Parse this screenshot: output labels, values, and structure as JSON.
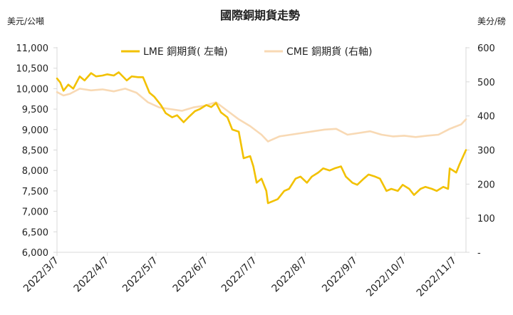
{
  "chart_data": {
    "type": "line",
    "title": "國際銅期貨走勢",
    "left_unit": "美元/公噸",
    "right_unit": "美分/磅",
    "legend_position": "top",
    "grid": false,
    "colors": {
      "lme": "#F2C100",
      "cme": "#F8D9B4"
    },
    "x_ticks": [
      "2022/3/7",
      "2022/4/7",
      "2022/5/7",
      "2022/6/7",
      "2022/7/7",
      "2022/8/7",
      "2022/9/7",
      "2022/10/7",
      "2022/11/7"
    ],
    "y_left_ticks": [
      "6,000",
      "6,500",
      "7,000",
      "7,500",
      "8,000",
      "8,500",
      "9,000",
      "9,500",
      "10,000",
      "10,500",
      "11,000"
    ],
    "y_right_ticks": [
      "-",
      "100",
      "200",
      "300",
      "400",
      "500",
      "600"
    ],
    "ylim_left": [
      6000,
      11000
    ],
    "ylim_right": [
      0,
      600
    ],
    "series": [
      {
        "name": "LME 銅期貨( 左軸)",
        "axis": "left",
        "points": [
          [
            "2022-03-07",
            10250
          ],
          [
            "2022-03-09",
            10150
          ],
          [
            "2022-03-11",
            9950
          ],
          [
            "2022-03-14",
            10100
          ],
          [
            "2022-03-17",
            10000
          ],
          [
            "2022-03-21",
            10300
          ],
          [
            "2022-03-24",
            10200
          ],
          [
            "2022-03-28",
            10380
          ],
          [
            "2022-03-31",
            10300
          ],
          [
            "2022-04-04",
            10320
          ],
          [
            "2022-04-07",
            10350
          ],
          [
            "2022-04-11",
            10320
          ],
          [
            "2022-04-14",
            10400
          ],
          [
            "2022-04-19",
            10200
          ],
          [
            "2022-04-22",
            10300
          ],
          [
            "2022-04-26",
            10280
          ],
          [
            "2022-04-29",
            10280
          ],
          [
            "2022-05-03",
            9900
          ],
          [
            "2022-05-06",
            9800
          ],
          [
            "2022-05-10",
            9600
          ],
          [
            "2022-05-13",
            9400
          ],
          [
            "2022-05-17",
            9300
          ],
          [
            "2022-05-20",
            9350
          ],
          [
            "2022-05-24",
            9180
          ],
          [
            "2022-05-27",
            9300
          ],
          [
            "2022-05-31",
            9450
          ],
          [
            "2022-06-03",
            9500
          ],
          [
            "2022-06-07",
            9600
          ],
          [
            "2022-06-10",
            9550
          ],
          [
            "2022-06-13",
            9650
          ],
          [
            "2022-06-16",
            9420
          ],
          [
            "2022-06-20",
            9300
          ],
          [
            "2022-06-23",
            9000
          ],
          [
            "2022-06-27",
            8950
          ],
          [
            "2022-06-30",
            8300
          ],
          [
            "2022-07-04",
            8350
          ],
          [
            "2022-07-06",
            8100
          ],
          [
            "2022-07-08",
            7700
          ],
          [
            "2022-07-11",
            7800
          ],
          [
            "2022-07-14",
            7500
          ],
          [
            "2022-07-15",
            7200
          ],
          [
            "2022-07-18",
            7250
          ],
          [
            "2022-07-21",
            7300
          ],
          [
            "2022-07-25",
            7500
          ],
          [
            "2022-07-28",
            7550
          ],
          [
            "2022-08-01",
            7800
          ],
          [
            "2022-08-04",
            7850
          ],
          [
            "2022-08-08",
            7700
          ],
          [
            "2022-08-11",
            7850
          ],
          [
            "2022-08-15",
            7950
          ],
          [
            "2022-08-18",
            8050
          ],
          [
            "2022-08-22",
            8000
          ],
          [
            "2022-08-25",
            8050
          ],
          [
            "2022-08-29",
            8100
          ],
          [
            "2022-09-01",
            7850
          ],
          [
            "2022-09-05",
            7700
          ],
          [
            "2022-09-08",
            7650
          ],
          [
            "2022-09-12",
            7800
          ],
          [
            "2022-09-15",
            7900
          ],
          [
            "2022-09-19",
            7850
          ],
          [
            "2022-09-22",
            7800
          ],
          [
            "2022-09-26",
            7500
          ],
          [
            "2022-09-29",
            7550
          ],
          [
            "2022-10-03",
            7500
          ],
          [
            "2022-10-06",
            7650
          ],
          [
            "2022-10-10",
            7550
          ],
          [
            "2022-10-13",
            7400
          ],
          [
            "2022-10-17",
            7550
          ],
          [
            "2022-10-20",
            7600
          ],
          [
            "2022-10-24",
            7550
          ],
          [
            "2022-10-27",
            7500
          ],
          [
            "2022-10-31",
            7600
          ],
          [
            "2022-11-03",
            7550
          ],
          [
            "2022-11-04",
            8050
          ],
          [
            "2022-11-08",
            7950
          ],
          [
            "2022-11-10",
            8150
          ],
          [
            "2022-11-14",
            8500
          ]
        ]
      },
      {
        "name": "CME 銅期貨 (右軸)",
        "axis": "right",
        "points": [
          [
            "2022-03-07",
            470
          ],
          [
            "2022-03-11",
            460
          ],
          [
            "2022-03-15",
            465
          ],
          [
            "2022-03-21",
            480
          ],
          [
            "2022-03-28",
            475
          ],
          [
            "2022-04-04",
            478
          ],
          [
            "2022-04-11",
            472
          ],
          [
            "2022-04-18",
            480
          ],
          [
            "2022-04-25",
            468
          ],
          [
            "2022-05-02",
            440
          ],
          [
            "2022-05-09",
            425
          ],
          [
            "2022-05-16",
            420
          ],
          [
            "2022-05-23",
            415
          ],
          [
            "2022-05-30",
            425
          ],
          [
            "2022-06-06",
            430
          ],
          [
            "2022-06-13",
            440
          ],
          [
            "2022-06-20",
            415
          ],
          [
            "2022-06-27",
            390
          ],
          [
            "2022-07-04",
            370
          ],
          [
            "2022-07-11",
            345
          ],
          [
            "2022-07-15",
            325
          ],
          [
            "2022-07-22",
            340
          ],
          [
            "2022-07-29",
            345
          ],
          [
            "2022-08-05",
            350
          ],
          [
            "2022-08-12",
            355
          ],
          [
            "2022-08-19",
            360
          ],
          [
            "2022-08-26",
            362
          ],
          [
            "2022-09-02",
            345
          ],
          [
            "2022-09-09",
            350
          ],
          [
            "2022-09-16",
            355
          ],
          [
            "2022-09-23",
            345
          ],
          [
            "2022-09-30",
            340
          ],
          [
            "2022-10-07",
            342
          ],
          [
            "2022-10-14",
            338
          ],
          [
            "2022-10-21",
            342
          ],
          [
            "2022-10-28",
            345
          ],
          [
            "2022-11-04",
            362
          ],
          [
            "2022-11-11",
            375
          ],
          [
            "2022-11-14",
            390
          ]
        ]
      }
    ]
  }
}
